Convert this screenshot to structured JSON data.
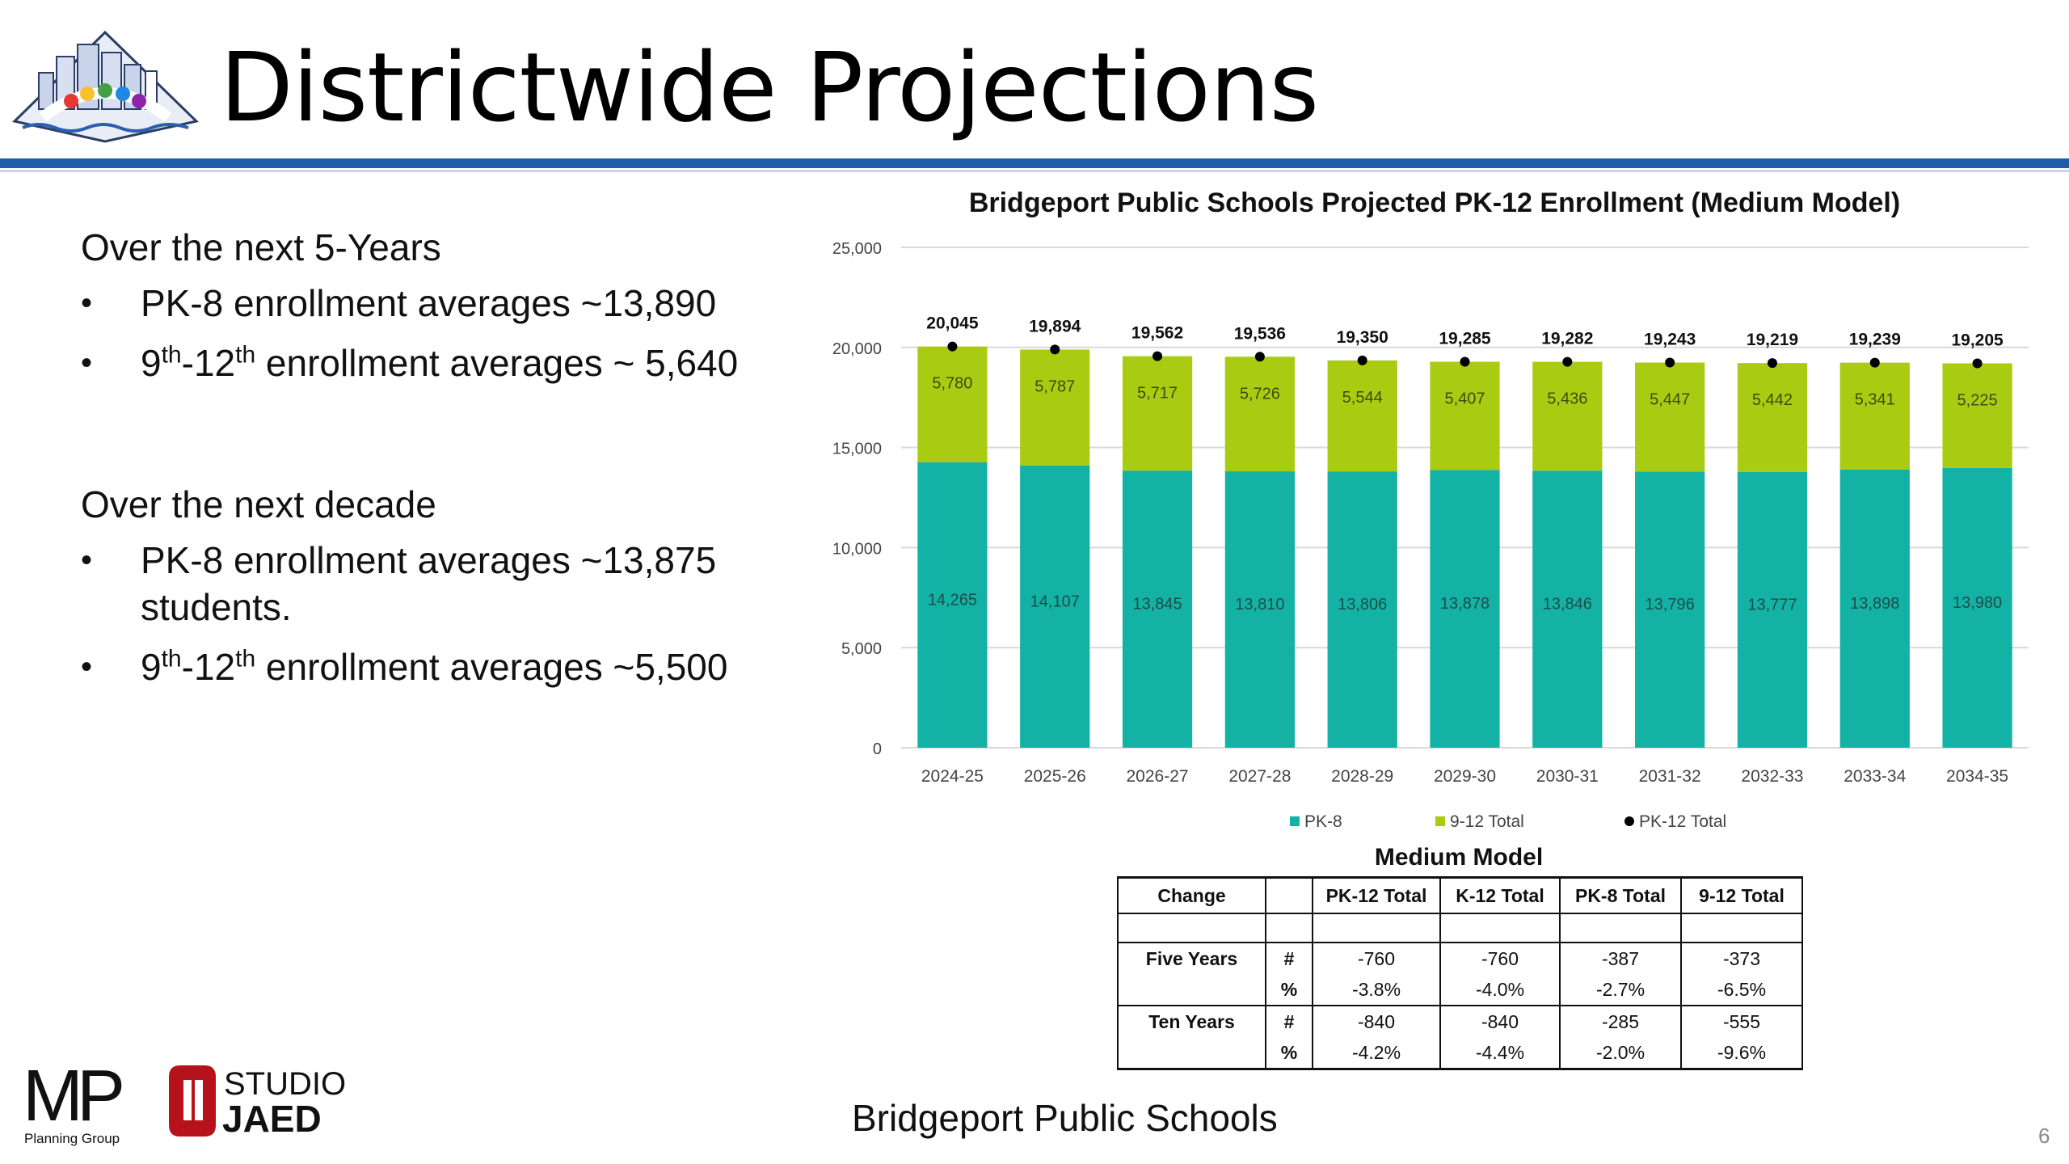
{
  "slide": {
    "title": "Districtwide Projections",
    "footer": "Bridgeport Public Schools",
    "page_number": "6"
  },
  "logos": {
    "mp_letters": "MP",
    "mp_caption": "Planning Group",
    "studio_top": "STUDIO",
    "studio_bottom": "JAED"
  },
  "bullets": {
    "section1_heading": "Over the next 5-Years",
    "s1_item1": "PK-8 enrollment averages ~13,890",
    "s1_item2_pre": "9",
    "s1_item2_sup1": "th",
    "s1_item2_mid": "-12",
    "s1_item2_sup2": "th",
    "s1_item2_post": " enrollment averages ~ 5,640",
    "section2_heading": "Over the next decade",
    "s2_item1": "PK-8 enrollment averages ~13,875 students.",
    "s2_item2_pre": "9",
    "s2_item2_sup1": "th",
    "s2_item2_mid": "-12",
    "s2_item2_sup2": "th",
    "s2_item2_post": " enrollment averages ~5,500"
  },
  "chart_data": {
    "type": "bar",
    "stacked": true,
    "title": "Bridgeport Public Schools Projected PK-12 Enrollment (Medium Model)",
    "categories": [
      "2024-25",
      "2025-26",
      "2026-27",
      "2027-28",
      "2028-29",
      "2029-30",
      "2030-31",
      "2031-32",
      "2032-33",
      "2033-34",
      "2034-35"
    ],
    "series": [
      {
        "name": "PK-8",
        "color": "#13b2a4",
        "values": [
          14265,
          14107,
          13845,
          13810,
          13806,
          13878,
          13846,
          13796,
          13777,
          13898,
          13980
        ]
      },
      {
        "name": "9-12 Total",
        "color": "#a9cc12",
        "values": [
          5780,
          5787,
          5717,
          5726,
          5544,
          5407,
          5436,
          5447,
          5442,
          5341,
          5225
        ]
      }
    ],
    "totals": {
      "name": "PK-12 Total",
      "values": [
        20045,
        19894,
        19562,
        19536,
        19350,
        19285,
        19282,
        19243,
        19219,
        19239,
        19205
      ]
    },
    "yticks": [
      0,
      5000,
      10000,
      15000,
      20000,
      25000
    ],
    "ylim": [
      0,
      25000
    ],
    "legend_position": "bottom",
    "grid": true
  },
  "table": {
    "title": "Medium Model",
    "headers": [
      "Change",
      "",
      "PK-12 Total",
      "K-12 Total",
      "PK-8 Total",
      "9-12 Total"
    ],
    "rows": [
      {
        "label": "Five Years",
        "sym1": "#",
        "vals1": [
          "-760",
          "-760",
          "-387",
          "-373"
        ],
        "sym2": "%",
        "vals2": [
          "-3.8%",
          "-4.0%",
          "-2.7%",
          "-6.5%"
        ]
      },
      {
        "label": "Ten Years",
        "sym1": "#",
        "vals1": [
          "-840",
          "-840",
          "-285",
          "-555"
        ],
        "sym2": "%",
        "vals2": [
          "-4.2%",
          "-4.4%",
          "-2.0%",
          "-9.6%"
        ]
      }
    ]
  }
}
